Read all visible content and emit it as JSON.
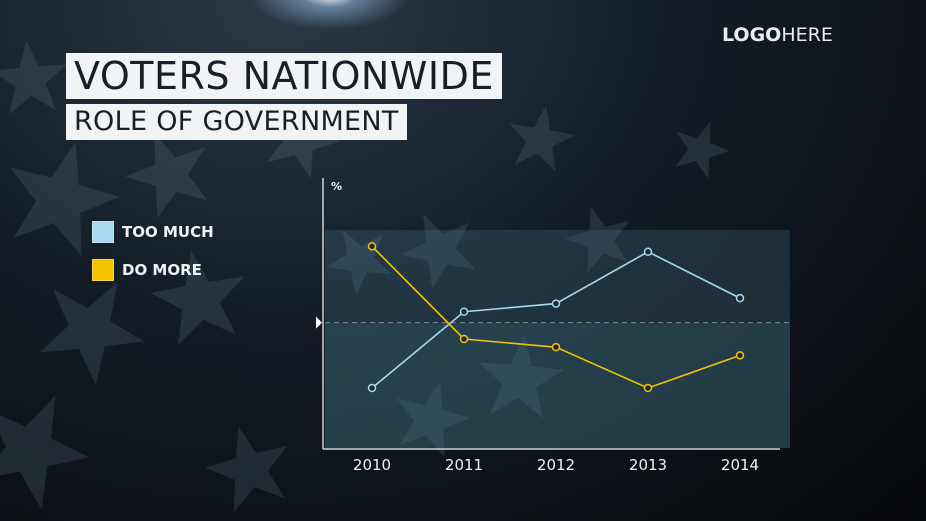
{
  "header": {
    "title": "VOTERS NATIONWIDE",
    "subtitle": "ROLE OF GOVERNMENT"
  },
  "logo": {
    "bold": "LOGO",
    "light": "HERE"
  },
  "colors": {
    "too_much": "#a8d8f0",
    "do_more": "#f5c400",
    "axis": "#cfd6dc"
  },
  "chart_data": {
    "type": "line",
    "ylabel": "%",
    "x": [
      "2010",
      "2011",
      "2012",
      "2013",
      "2014"
    ],
    "series": [
      {
        "name": "TOO MUCH",
        "values": [
          36,
          50,
          51.5,
          61,
          52.5
        ]
      },
      {
        "name": "DO MORE",
        "values": [
          62,
          45,
          43.5,
          36,
          42
        ]
      }
    ],
    "reference_value": 48,
    "ylim": [
      25,
      65
    ],
    "grid": false,
    "legend": "left"
  }
}
